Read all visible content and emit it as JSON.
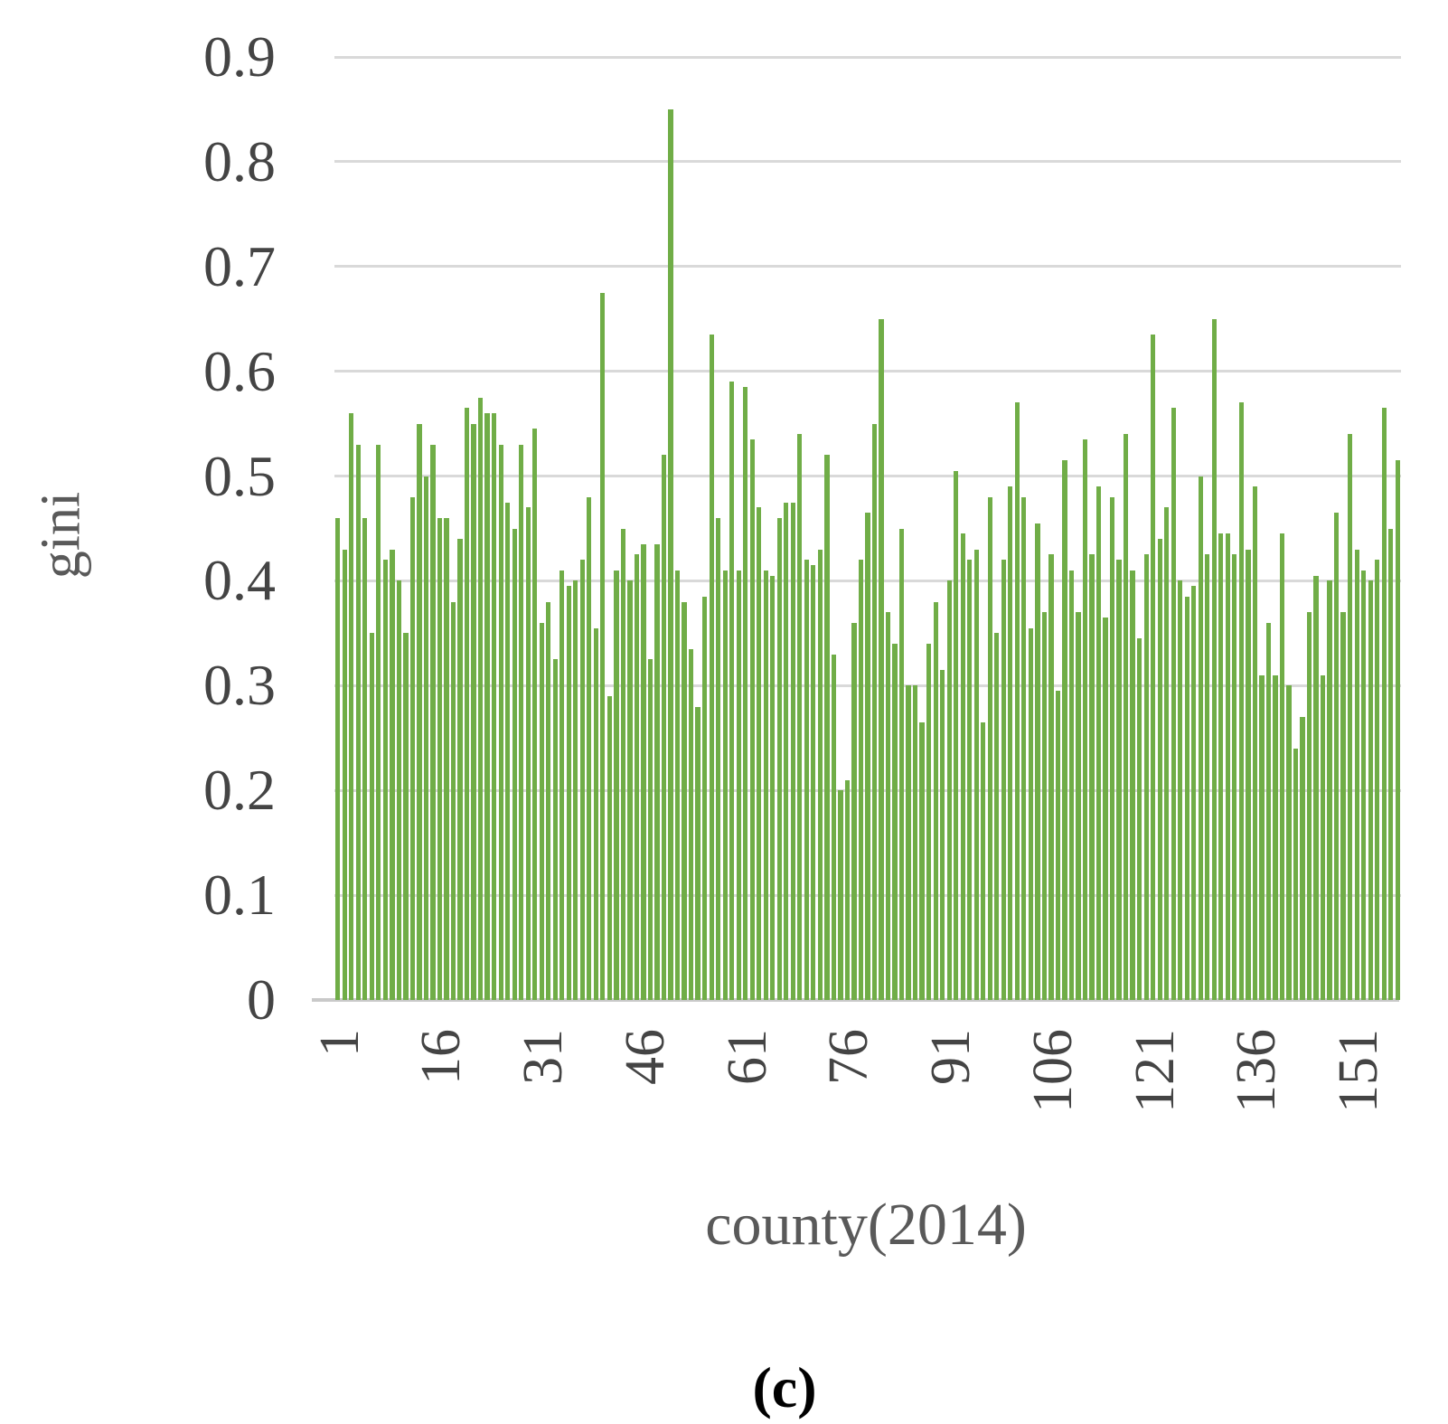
{
  "y_axis": {
    "title": "gini",
    "tick_labels": [
      "0",
      "0.1",
      "0.2",
      "0.3",
      "0.4",
      "0.5",
      "0.6",
      "0.7",
      "0.8",
      "0.9"
    ],
    "max": 0.9
  },
  "x_axis": {
    "title": "county(2014)",
    "tick_labels": [
      1,
      16,
      31,
      46,
      61,
      76,
      91,
      106,
      121,
      136,
      151
    ]
  },
  "caption": "(c)",
  "colors": {
    "bar": "#70ad47",
    "gridline": "#d9d9d9",
    "baseline": "#c9c9c9",
    "tick_text": "#444444",
    "title_text": "#595959",
    "caption_text": "#000000"
  },
  "chart_data": {
    "type": "bar",
    "title": "",
    "xlabel": "county(2014)",
    "ylabel": "gini",
    "x_range": [
      1,
      157
    ],
    "ylim": [
      0,
      0.9
    ],
    "grid": true,
    "legend": false,
    "series_name": "gini",
    "values": [
      0.46,
      0.43,
      0.56,
      0.53,
      0.46,
      0.35,
      0.53,
      0.42,
      0.43,
      0.4,
      0.35,
      0.48,
      0.55,
      0.5,
      0.53,
      0.46,
      0.46,
      0.38,
      0.44,
      0.565,
      0.55,
      0.575,
      0.56,
      0.56,
      0.53,
      0.475,
      0.45,
      0.53,
      0.47,
      0.545,
      0.36,
      0.38,
      0.325,
      0.41,
      0.395,
      0.4,
      0.42,
      0.48,
      0.355,
      0.675,
      0.29,
      0.41,
      0.45,
      0.4,
      0.425,
      0.435,
      0.325,
      0.435,
      0.52,
      0.85,
      0.41,
      0.38,
      0.335,
      0.28,
      0.385,
      0.635,
      0.46,
      0.41,
      0.59,
      0.41,
      0.585,
      0.535,
      0.47,
      0.41,
      0.405,
      0.46,
      0.475,
      0.475,
      0.54,
      0.42,
      0.415,
      0.43,
      0.52,
      0.33,
      0.2,
      0.21,
      0.36,
      0.42,
      0.465,
      0.55,
      0.65,
      0.37,
      0.34,
      0.45,
      0.3,
      0.3,
      0.265,
      0.34,
      0.38,
      0.315,
      0.4,
      0.505,
      0.445,
      0.42,
      0.43,
      0.265,
      0.48,
      0.35,
      0.42,
      0.49,
      0.57,
      0.48,
      0.355,
      0.455,
      0.37,
      0.425,
      0.295,
      0.515,
      0.41,
      0.37,
      0.535,
      0.425,
      0.49,
      0.365,
      0.48,
      0.42,
      0.54,
      0.41,
      0.345,
      0.425,
      0.635,
      0.44,
      0.47,
      0.565,
      0.4,
      0.385,
      0.395,
      0.5,
      0.425,
      0.65,
      0.445,
      0.445,
      0.425,
      0.57,
      0.43,
      0.49,
      0.31,
      0.36,
      0.31,
      0.445,
      0.3,
      0.24,
      0.27,
      0.37,
      0.405,
      0.31,
      0.4,
      0.465,
      0.37,
      0.54,
      0.43,
      0.41,
      0.4,
      0.42,
      0.565,
      0.45,
      0.515
    ]
  }
}
